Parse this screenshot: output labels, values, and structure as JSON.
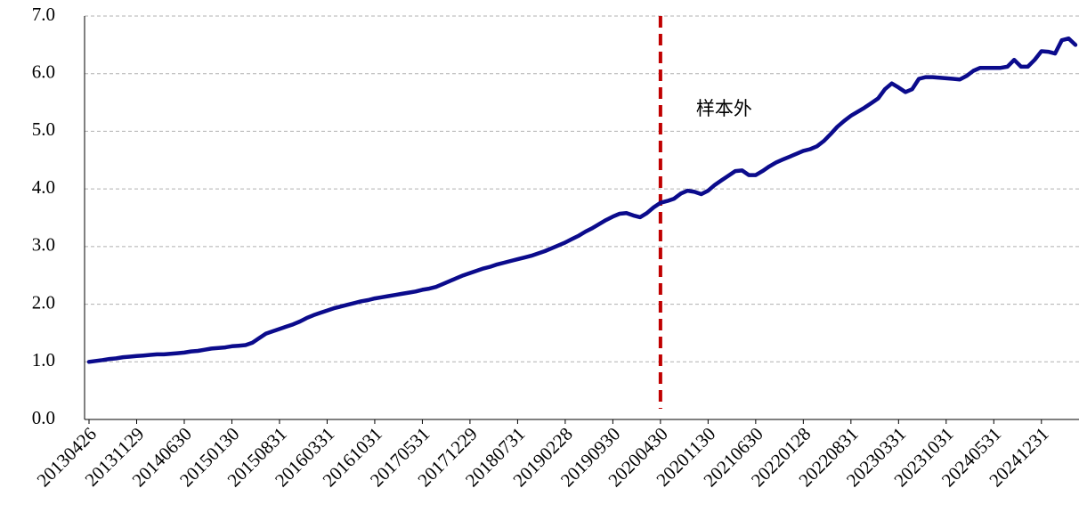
{
  "chart_data": {
    "type": "line",
    "categories": [
      "20130426",
      null,
      null,
      null,
      null,
      null,
      null,
      "20131129",
      null,
      null,
      null,
      null,
      null,
      null,
      "20140630",
      null,
      null,
      null,
      null,
      null,
      null,
      "20150130",
      null,
      null,
      null,
      null,
      null,
      null,
      "20150831",
      null,
      null,
      null,
      null,
      null,
      null,
      "20160331",
      null,
      null,
      null,
      null,
      null,
      null,
      "20161031",
      null,
      null,
      null,
      null,
      null,
      null,
      "20170531",
      null,
      null,
      null,
      null,
      null,
      null,
      "20171229",
      null,
      null,
      null,
      null,
      null,
      null,
      "20180731",
      null,
      null,
      null,
      null,
      null,
      null,
      "20190228",
      null,
      null,
      null,
      null,
      null,
      null,
      "20190930",
      null,
      null,
      null,
      null,
      null,
      null,
      "20200430",
      null,
      null,
      null,
      null,
      null,
      null,
      "20201130",
      null,
      null,
      null,
      null,
      null,
      null,
      "20210630",
      null,
      null,
      null,
      null,
      null,
      null,
      "20220128",
      null,
      null,
      null,
      null,
      null,
      null,
      "20220831",
      null,
      null,
      null,
      null,
      null,
      null,
      "20230331",
      null,
      null,
      null,
      null,
      null,
      null,
      "20231031",
      null,
      null,
      null,
      null,
      null,
      null,
      "20240531",
      null,
      null,
      null,
      null,
      null,
      null,
      "20241231",
      null,
      null,
      null,
      null,
      null
    ],
    "series": [
      {
        "color": "#0b0b8c",
        "values": [
          1.0,
          1.015,
          1.03,
          1.05,
          1.06,
          1.08,
          1.09,
          1.1,
          1.11,
          1.12,
          1.13,
          1.13,
          1.14,
          1.15,
          1.16,
          1.18,
          1.19,
          1.21,
          1.23,
          1.24,
          1.25,
          1.27,
          1.28,
          1.29,
          1.33,
          1.41,
          1.49,
          1.53,
          1.57,
          1.61,
          1.65,
          1.7,
          1.76,
          1.81,
          1.85,
          1.89,
          1.93,
          1.96,
          1.99,
          2.02,
          2.05,
          2.07,
          2.1,
          2.12,
          2.14,
          2.16,
          2.18,
          2.2,
          2.22,
          2.25,
          2.27,
          2.3,
          2.35,
          2.4,
          2.45,
          2.5,
          2.54,
          2.58,
          2.62,
          2.65,
          2.69,
          2.72,
          2.75,
          2.78,
          2.81,
          2.84,
          2.88,
          2.92,
          2.97,
          3.02,
          3.07,
          3.13,
          3.19,
          3.26,
          3.32,
          3.39,
          3.46,
          3.52,
          3.57,
          3.58,
          3.54,
          3.51,
          3.58,
          3.68,
          3.76,
          3.79,
          3.83,
          3.92,
          3.97,
          3.95,
          3.91,
          3.97,
          4.07,
          4.15,
          4.23,
          4.31,
          4.32,
          4.24,
          4.24,
          4.31,
          4.39,
          4.46,
          4.51,
          4.56,
          4.61,
          4.66,
          4.69,
          4.74,
          4.83,
          4.95,
          5.08,
          5.18,
          5.27,
          5.34,
          5.41,
          5.49,
          5.57,
          5.73,
          5.83,
          5.76,
          5.68,
          5.73,
          5.91,
          5.94,
          5.94,
          5.93,
          5.92,
          5.91,
          5.9,
          5.96,
          6.05,
          6.1,
          6.1,
          6.1,
          6.1,
          6.12,
          6.24,
          6.12,
          6.12,
          6.24,
          6.39,
          6.38,
          6.35,
          6.58,
          6.61,
          6.5
        ]
      }
    ],
    "ylim": [
      0,
      7
    ],
    "yticks": [
      {
        "value": 0,
        "label": "0.0"
      },
      {
        "value": 1,
        "label": "1.0"
      },
      {
        "value": 2,
        "label": "2.0"
      },
      {
        "value": 3,
        "label": "3.0"
      },
      {
        "value": 4,
        "label": "4.0"
      },
      {
        "value": 5,
        "label": "5.0"
      },
      {
        "value": 6,
        "label": "6.0"
      },
      {
        "value": 7,
        "label": "7.0"
      }
    ],
    "grid": true,
    "annotation": {
      "text": "样本外",
      "color": "#c00000",
      "at_category": "20200430"
    }
  }
}
